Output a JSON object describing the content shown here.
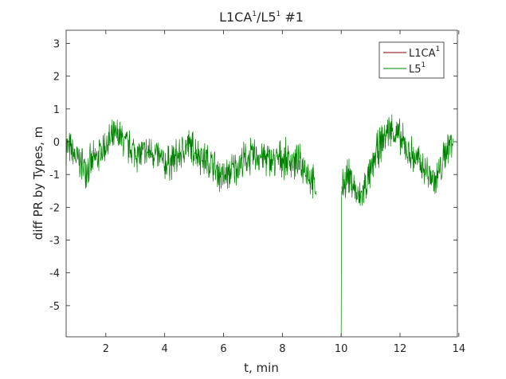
{
  "chart_data": {
    "type": "line",
    "title": "L1CA¹/L5¹ #1",
    "xlabel": "t, min",
    "ylabel": "diff PR by Types, m",
    "xlim": [
      0.65,
      13.95
    ],
    "ylim": [
      -5.95,
      3.4
    ],
    "xticks": [
      2,
      4,
      6,
      8,
      10,
      12,
      14
    ],
    "yticks": [
      3,
      2,
      1,
      0,
      -1,
      -2,
      -3,
      -4,
      -5
    ],
    "grid": false,
    "legend_position": "top-right",
    "series": [
      {
        "name": "L1CA¹",
        "color": "#7f0000",
        "x": [],
        "y": []
      },
      {
        "name": "L5¹",
        "color": "#008000",
        "noise_amplitude": 0.45,
        "segments": [
          {
            "x": [
              0.65,
              1.0,
              1.3,
              1.6,
              2.0,
              2.4,
              2.8,
              3.2,
              3.6,
              4.0,
              4.4,
              4.8,
              5.2,
              5.6,
              6.0,
              6.4,
              6.8,
              7.2,
              7.6,
              8.0,
              8.4,
              8.8,
              9.15
            ],
            "y": [
              -0.1,
              -0.5,
              -0.8,
              -0.6,
              -0.1,
              0.2,
              -0.2,
              -0.4,
              -0.3,
              -0.7,
              -0.5,
              -0.1,
              -0.4,
              -0.7,
              -1.1,
              -0.8,
              -0.5,
              -0.4,
              -0.6,
              -0.5,
              -0.6,
              -0.8,
              -1.5
            ]
          },
          {
            "x": [
              10.0,
              10.01,
              10.02
            ],
            "y": [
              -5.95,
              -1.8,
              -1.5
            ]
          },
          {
            "x": [
              10.02,
              10.2,
              10.4,
              10.6,
              10.8,
              11.0,
              11.2,
              11.4,
              11.6,
              11.8,
              12.0,
              12.2,
              12.4,
              12.6,
              12.8,
              13.0,
              13.2,
              13.4,
              13.6,
              13.8
            ],
            "y": [
              -1.5,
              -1.0,
              -1.3,
              -1.8,
              -1.4,
              -1.0,
              -0.3,
              0.0,
              0.4,
              0.3,
              0.1,
              -0.2,
              -0.4,
              -0.6,
              -0.8,
              -1.0,
              -1.2,
              -0.8,
              -0.2,
              0.1
            ]
          }
        ]
      }
    ]
  }
}
